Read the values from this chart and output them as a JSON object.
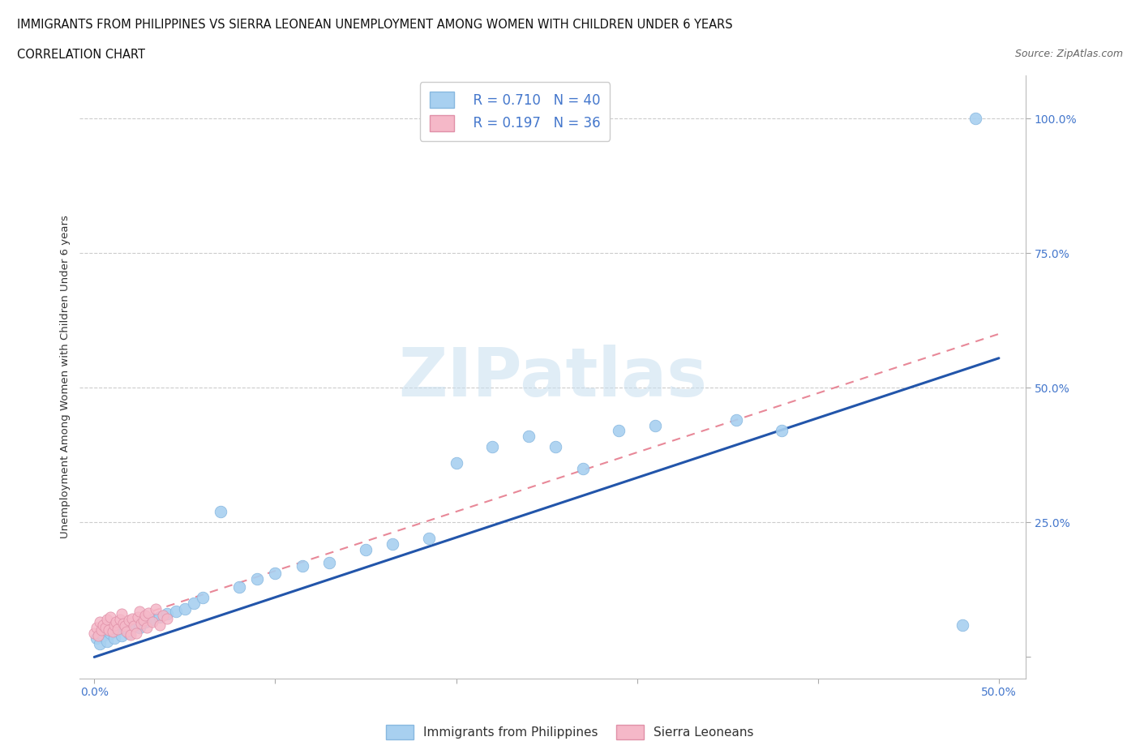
{
  "title_line1": "IMMIGRANTS FROM PHILIPPINES VS SIERRA LEONEAN UNEMPLOYMENT AMONG WOMEN WITH CHILDREN UNDER 6 YEARS",
  "title_line2": "CORRELATION CHART",
  "source": "Source: ZipAtlas.com",
  "ylabel": "Unemployment Among Women with Children Under 6 years",
  "xlim": [
    -0.008,
    0.515
  ],
  "ylim": [
    -0.04,
    1.08
  ],
  "R_blue": 0.71,
  "N_blue": 40,
  "R_pink": 0.197,
  "N_pink": 36,
  "blue_color": "#a8d0f0",
  "pink_color": "#f5b8c8",
  "blue_line_color": "#2255aa",
  "pink_line_color": "#e88898",
  "watermark": "ZIPatlas",
  "blue_scatter_x": [
    0.001,
    0.003,
    0.005,
    0.007,
    0.009,
    0.011,
    0.013,
    0.015,
    0.017,
    0.019,
    0.022,
    0.025,
    0.028,
    0.032,
    0.036,
    0.04,
    0.045,
    0.05,
    0.055,
    0.06,
    0.07,
    0.08,
    0.09,
    0.1,
    0.115,
    0.13,
    0.15,
    0.165,
    0.185,
    0.2,
    0.22,
    0.24,
    0.255,
    0.27,
    0.29,
    0.31,
    0.355,
    0.38,
    0.48,
    0.487
  ],
  "blue_scatter_y": [
    0.035,
    0.025,
    0.04,
    0.03,
    0.045,
    0.035,
    0.05,
    0.04,
    0.055,
    0.045,
    0.06,
    0.055,
    0.065,
    0.07,
    0.075,
    0.08,
    0.085,
    0.09,
    0.1,
    0.11,
    0.27,
    0.13,
    0.145,
    0.155,
    0.17,
    0.175,
    0.2,
    0.21,
    0.22,
    0.36,
    0.39,
    0.41,
    0.39,
    0.35,
    0.42,
    0.43,
    0.44,
    0.42,
    0.06,
    1.0
  ],
  "pink_scatter_x": [
    0.0,
    0.001,
    0.002,
    0.003,
    0.004,
    0.005,
    0.006,
    0.007,
    0.008,
    0.009,
    0.01,
    0.011,
    0.012,
    0.013,
    0.014,
    0.015,
    0.016,
    0.017,
    0.018,
    0.019,
    0.02,
    0.021,
    0.022,
    0.023,
    0.024,
    0.025,
    0.026,
    0.027,
    0.028,
    0.029,
    0.03,
    0.032,
    0.034,
    0.036,
    0.038,
    0.04
  ],
  "pink_scatter_y": [
    0.045,
    0.055,
    0.04,
    0.065,
    0.05,
    0.06,
    0.055,
    0.07,
    0.05,
    0.075,
    0.048,
    0.06,
    0.065,
    0.052,
    0.07,
    0.08,
    0.062,
    0.058,
    0.048,
    0.068,
    0.042,
    0.072,
    0.058,
    0.045,
    0.075,
    0.085,
    0.062,
    0.068,
    0.078,
    0.055,
    0.082,
    0.065,
    0.09,
    0.06,
    0.078,
    0.072
  ],
  "blue_line_x0": 0.0,
  "blue_line_y0": 0.0,
  "blue_line_x1": 0.5,
  "blue_line_y1": 0.555,
  "pink_line_x0": 0.0,
  "pink_line_y0": 0.05,
  "pink_line_x1": 0.5,
  "pink_line_y1": 0.6
}
